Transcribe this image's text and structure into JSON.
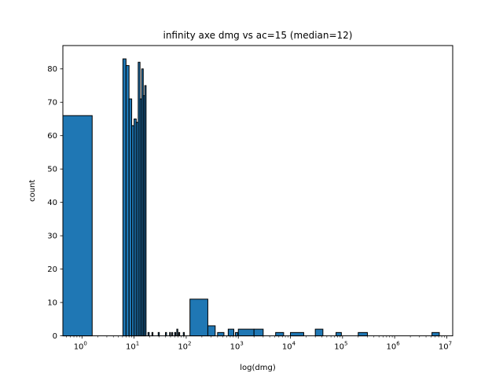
{
  "chart_data": {
    "type": "bar",
    "title": "infinity axe dmg vs ac=15 (median=12)",
    "xlabel": "log(dmg)",
    "ylabel": "count",
    "xscale": "log",
    "xlim": [
      0.43,
      13000000
    ],
    "ylim": [
      0,
      87
    ],
    "xticks": [
      {
        "value": 1,
        "base": "10",
        "exp": "0"
      },
      {
        "value": 10,
        "base": "10",
        "exp": "1"
      },
      {
        "value": 100,
        "base": "10",
        "exp": "2"
      },
      {
        "value": 1000,
        "base": "10",
        "exp": "3"
      },
      {
        "value": 10000,
        "base": "10",
        "exp": "4"
      },
      {
        "value": 100000,
        "base": "10",
        "exp": "5"
      },
      {
        "value": 1000000,
        "base": "10",
        "exp": "6"
      },
      {
        "value": 10000000,
        "base": "10",
        "exp": "7"
      }
    ],
    "yticks": [
      "0",
      "10",
      "20",
      "30",
      "40",
      "50",
      "60",
      "70",
      "80"
    ],
    "bar_color": "#1f77b4",
    "edge_color": "#000000",
    "grid": false,
    "bins": [
      {
        "x0": 0.43,
        "x1": 1.57,
        "value": 66
      },
      {
        "x0": 6.1,
        "x1": 7.0,
        "value": 83
      },
      {
        "x0": 7.0,
        "x1": 8.0,
        "value": 81
      },
      {
        "x0": 8.0,
        "x1": 9.0,
        "value": 71
      },
      {
        "x0": 9.0,
        "x1": 10.0,
        "value": 63
      },
      {
        "x0": 10.0,
        "x1": 11.0,
        "value": 65
      },
      {
        "x0": 11.0,
        "x1": 12.0,
        "value": 64
      },
      {
        "x0": 12.0,
        "x1": 13.0,
        "value": 82
      },
      {
        "x0": 13.0,
        "x1": 14.0,
        "value": 71
      },
      {
        "x0": 14.0,
        "x1": 15.0,
        "value": 80
      },
      {
        "x0": 15.0,
        "x1": 16.0,
        "value": 72
      },
      {
        "x0": 16.0,
        "x1": 17.0,
        "value": 75
      },
      {
        "x0": 18.5,
        "x1": 19.5,
        "value": 1
      },
      {
        "x0": 22,
        "x1": 23,
        "value": 1
      },
      {
        "x0": 29,
        "x1": 30.5,
        "value": 1
      },
      {
        "x0": 40,
        "x1": 42,
        "value": 1
      },
      {
        "x0": 48,
        "x1": 50,
        "value": 1
      },
      {
        "x0": 53,
        "x1": 55,
        "value": 1
      },
      {
        "x0": 60,
        "x1": 63,
        "value": 1
      },
      {
        "x0": 66,
        "x1": 69,
        "value": 2
      },
      {
        "x0": 72,
        "x1": 75,
        "value": 1
      },
      {
        "x0": 88,
        "x1": 92,
        "value": 1
      },
      {
        "x0": 118,
        "x1": 260,
        "value": 11
      },
      {
        "x0": 260,
        "x1": 360,
        "value": 3
      },
      {
        "x0": 400,
        "x1": 530,
        "value": 1
      },
      {
        "x0": 640,
        "x1": 820,
        "value": 2
      },
      {
        "x0": 880,
        "x1": 980,
        "value": 1
      },
      {
        "x0": 1000,
        "x1": 2000,
        "value": 2
      },
      {
        "x0": 2000,
        "x1": 3000,
        "value": 2
      },
      {
        "x0": 5200,
        "x1": 7400,
        "value": 1
      },
      {
        "x0": 10000,
        "x1": 18000,
        "value": 1
      },
      {
        "x0": 30000,
        "x1": 42000,
        "value": 2
      },
      {
        "x0": 75000,
        "x1": 95000,
        "value": 1
      },
      {
        "x0": 200000,
        "x1": 300000,
        "value": 1
      },
      {
        "x0": 5200000,
        "x1": 7200000,
        "value": 1
      }
    ]
  }
}
